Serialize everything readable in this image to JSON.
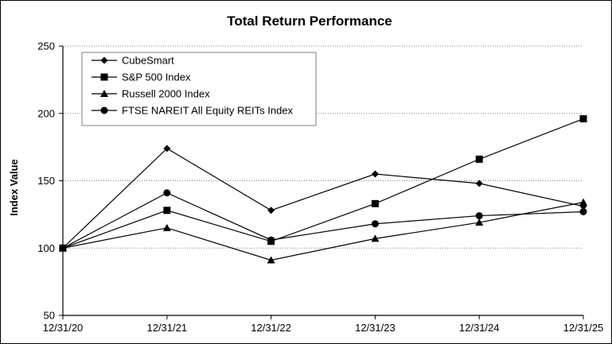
{
  "chart_data": {
    "type": "line",
    "title": "Total Return Performance",
    "ylabel": "Index Value",
    "xlabel": "",
    "categories": [
      "12/31/20",
      "12/31/21",
      "12/31/22",
      "12/31/23",
      "12/31/24",
      "12/31/25"
    ],
    "ylim": [
      50,
      250
    ],
    "yticks": [
      50,
      100,
      150,
      200,
      250
    ],
    "grid": "horizontal dotted",
    "legend_position": "top-left",
    "series": [
      {
        "name": "CubeSmart",
        "marker": "diamond",
        "values": [
          100,
          174,
          128,
          155,
          148,
          131
        ]
      },
      {
        "name": "S&P 500 Index",
        "marker": "square",
        "values": [
          100,
          128,
          105,
          133,
          166,
          196
        ]
      },
      {
        "name": "Russell 2000 Index",
        "marker": "triangle",
        "values": [
          100,
          115,
          91,
          107,
          119,
          134
        ]
      },
      {
        "name": "FTSE NAREIT All Equity REITs Index",
        "marker": "circle",
        "values": [
          100,
          141,
          106,
          118,
          124,
          127
        ]
      }
    ]
  }
}
